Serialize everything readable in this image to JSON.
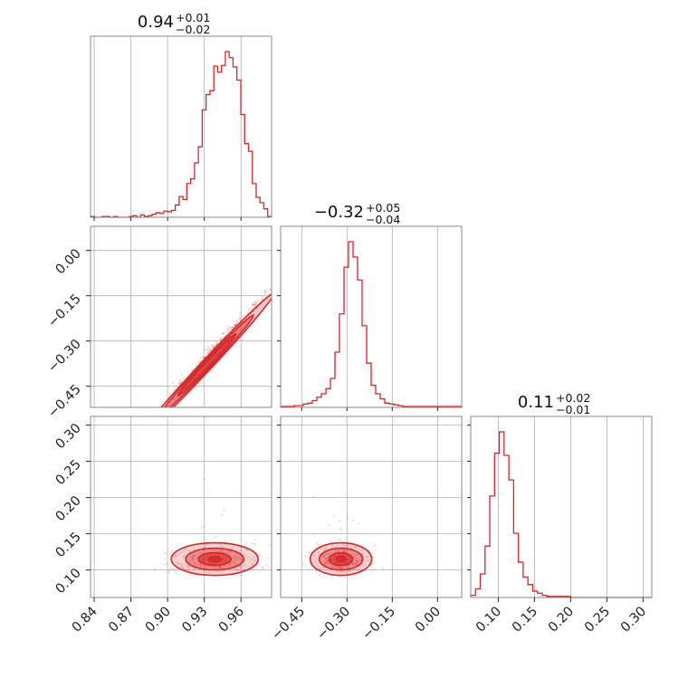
{
  "chart_data": {
    "type": "corner",
    "color": "#d62728",
    "grid": true,
    "parameters": [
      {
        "title": {
          "value": "0.94",
          "plus": "+0.01",
          "minus": "−0.02"
        },
        "range": [
          0.837,
          0.985
        ],
        "ticks": [
          0.84,
          0.87,
          0.9,
          0.93,
          0.96
        ],
        "tick_labels": [
          "0.84",
          "0.87",
          "0.90",
          "0.93",
          "0.96"
        ],
        "median": 0.94,
        "histogram": [
          1,
          0,
          0,
          1,
          1,
          0,
          1,
          0,
          0,
          0,
          1,
          2,
          0,
          3,
          1,
          2,
          4,
          6,
          5,
          8,
          7,
          9,
          16,
          27,
          23,
          44,
          50,
          71,
          92,
          140,
          160,
          165,
          197,
          189,
          198,
          216,
          208,
          196,
          179,
          134,
          96,
          86,
          44,
          26,
          19,
          11,
          1
        ]
      },
      {
        "title": {
          "value": "−0.32",
          "plus": "+0.05",
          "minus": "−0.04"
        },
        "range": [
          -0.52,
          0.08
        ],
        "ticks": [
          -0.45,
          -0.3,
          -0.15,
          0.0
        ],
        "tick_labels": [
          "−0.45",
          "−0.30",
          "−0.15",
          "0.00"
        ],
        "median": -0.32,
        "histogram": [
          1,
          1,
          1,
          2,
          2,
          4,
          5,
          8,
          12,
          16,
          22,
          34,
          65,
          110,
          165,
          195,
          177,
          150,
          96,
          52,
          26,
          16,
          10,
          5,
          4,
          3,
          2,
          1,
          1,
          1,
          1,
          1,
          1,
          1,
          1,
          1,
          1,
          1,
          1,
          1
        ]
      },
      {
        "title": {
          "value": "0.11",
          "plus": "+0.02",
          "minus": "−0.01"
        },
        "range": [
          0.062,
          0.312
        ],
        "ticks": [
          0.1,
          0.15,
          0.2,
          0.25,
          0.3
        ],
        "tick_labels": [
          "0.10",
          "0.15",
          "0.20",
          "0.25",
          "0.30"
        ],
        "median": 0.11,
        "histogram": [
          2,
          8,
          22,
          48,
          95,
          135,
          155,
          133,
          110,
          60,
          33,
          19,
          12,
          6,
          4,
          2,
          1,
          1,
          1,
          1,
          1,
          0,
          0,
          0,
          0,
          0,
          0,
          0,
          0,
          0,
          0,
          0,
          0,
          0,
          0,
          0,
          0,
          0
        ]
      }
    ],
    "pairs": [
      {
        "x": 0,
        "y": 1,
        "slope": 4.33,
        "intercept": -4.39,
        "spread_x": 0.022,
        "noise_y": 0.012
      },
      {
        "x": 0,
        "y": 2,
        "center": [
          0.94,
          0.11
        ],
        "sd": [
          0.02,
          0.012
        ]
      },
      {
        "x": 1,
        "y": 2,
        "center": [
          -0.32,
          0.11
        ],
        "sd": [
          0.045,
          0.012
        ]
      }
    ]
  }
}
